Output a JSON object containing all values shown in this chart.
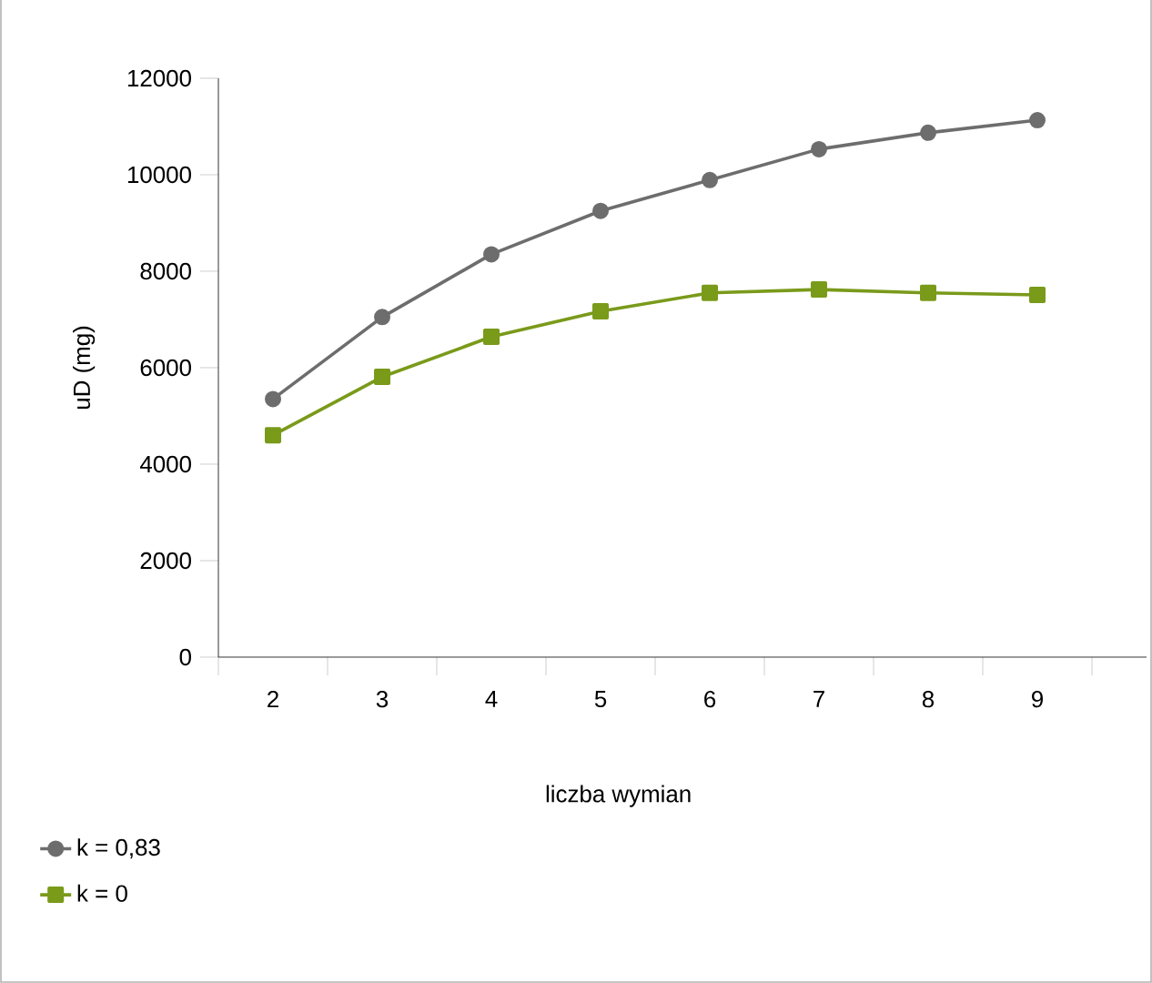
{
  "chart_data": {
    "type": "line",
    "xlabel": "liczba wymian",
    "ylabel": "uD (mg)",
    "categories": [
      "2",
      "3",
      "4",
      "5",
      "6",
      "7",
      "8",
      "9"
    ],
    "series": [
      {
        "name": "k = 0,83",
        "color": "#6d6d6d",
        "marker": "circle",
        "values": [
          5350,
          7050,
          8350,
          9250,
          9890,
          10530,
          10870,
          11130
        ]
      },
      {
        "name": "k = 0",
        "color": "#7a9a1a",
        "marker": "square",
        "values": [
          4600,
          5810,
          6640,
          7170,
          7550,
          7620,
          7550,
          7510
        ]
      }
    ],
    "ylim": [
      0,
      12000
    ],
    "yticks": [
      0,
      2000,
      4000,
      6000,
      8000,
      10000,
      12000
    ],
    "grid": false,
    "legend": "bottom left",
    "line_style": "solid"
  }
}
